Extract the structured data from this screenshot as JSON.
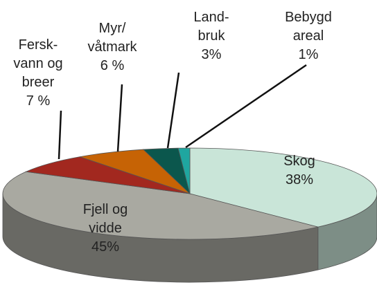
{
  "chart_data": {
    "type": "pie3d",
    "categories": [
      "Skog",
      "Fjell og\nvidde",
      "Fersk-\nvann og\nbreer",
      "Myr/\nvåtmark",
      "Land-\nbruk",
      "Bebygd\nareal"
    ],
    "values": [
      38,
      45,
      7,
      6,
      3,
      1
    ],
    "value_labels": [
      "38%",
      "45%",
      "7 %",
      "6 %",
      "3%",
      "1%"
    ],
    "colors": [
      "#c9e5d8",
      "#a9a9a1",
      "#a2281f",
      "#c66305",
      "#0b574d",
      "#1fa6a0"
    ]
  }
}
